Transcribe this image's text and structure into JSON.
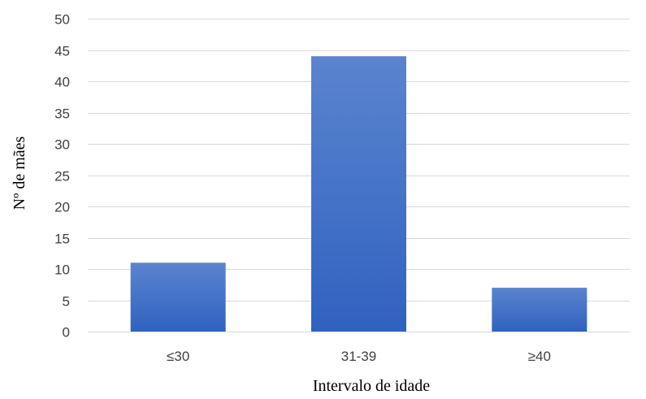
{
  "chart_data": {
    "type": "bar",
    "title": "",
    "xlabel": "Intervalo de idade",
    "ylabel": "Nº de mães",
    "categories": [
      "≤30",
      "31-39",
      "≥40"
    ],
    "values": [
      11,
      44,
      7
    ],
    "ylim": [
      0,
      50
    ],
    "yticks": [
      0,
      5,
      10,
      15,
      20,
      25,
      30,
      35,
      40,
      45,
      50
    ],
    "grid": true,
    "legend": "none",
    "colors": {
      "bar_top": "#5b84cf",
      "bar_bottom": "#2f62c0",
      "grid": "#d9d9d9",
      "tick_text": "#404040"
    }
  }
}
